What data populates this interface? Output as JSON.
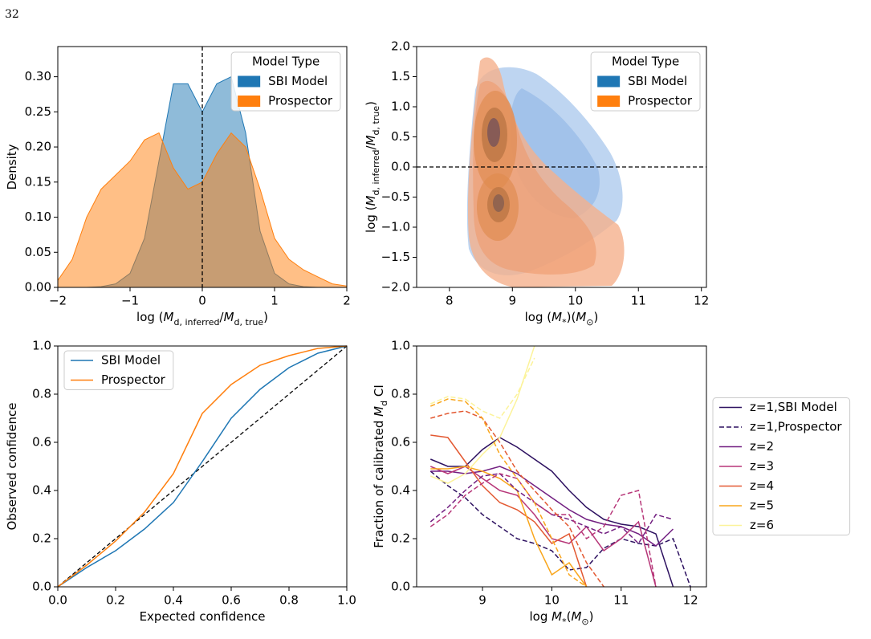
{
  "page_number": "32",
  "chart_data": [
    {
      "type": "area",
      "x": [
        -2,
        -1.8,
        -1.6,
        -1.4,
        -1.2,
        -1.0,
        -0.8,
        -0.6,
        -0.4,
        -0.2,
        0,
        0.2,
        0.4,
        0.6,
        0.8,
        1.0,
        1.2,
        1.4,
        1.6,
        1.8,
        2
      ],
      "series": [
        {
          "name": "SBI Model",
          "color": "#1f77b4",
          "values": [
            0,
            0,
            0,
            0.001,
            0.005,
            0.02,
            0.07,
            0.18,
            0.29,
            0.29,
            0.25,
            0.29,
            0.3,
            0.22,
            0.08,
            0.02,
            0.005,
            0.001,
            0,
            0,
            0
          ]
        },
        {
          "name": "Prospector",
          "color": "#ff7f0e",
          "values": [
            0.01,
            0.04,
            0.1,
            0.14,
            0.16,
            0.18,
            0.21,
            0.22,
            0.17,
            0.14,
            0.15,
            0.19,
            0.22,
            0.2,
            0.14,
            0.07,
            0.04,
            0.025,
            0.015,
            0.005,
            0.002
          ]
        }
      ],
      "xlim": [
        -2,
        2
      ],
      "ylim": [
        0,
        0.343
      ],
      "xticks": [
        {
          "value": -2,
          "label": "−2"
        },
        {
          "value": -1,
          "label": "−1"
        },
        0,
        1,
        2
      ],
      "yticks": [
        {
          "value": 0,
          "label": "0.00"
        },
        {
          "value": 0.05,
          "label": "0.05"
        },
        {
          "value": 0.1,
          "label": "0.10"
        },
        {
          "value": 0.15,
          "label": "0.15"
        },
        {
          "value": 0.2,
          "label": "0.20"
        },
        {
          "value": 0.25,
          "label": "0.25"
        },
        {
          "value": 0.3,
          "label": "0.30"
        }
      ],
      "xlabel": [
        {
          "text": "log ("
        },
        {
          "text": "M",
          "italic": true
        },
        {
          "text": "d, inferred",
          "sub": true
        },
        {
          "text": "/"
        },
        {
          "text": "M",
          "italic": true
        },
        {
          "text": "d, true",
          "sub": true
        },
        {
          "text": ")"
        }
      ],
      "ylabel": [
        {
          "text": "Density"
        }
      ],
      "vline": 0,
      "legend": {
        "title": "Model Type",
        "loc": "upper right",
        "style": "patch"
      }
    },
    {
      "type": "kde2d",
      "series": [
        {
          "name": "SBI Model",
          "color": "#1f77b4"
        },
        {
          "name": "Prospector",
          "color": "#ff7f0e"
        }
      ],
      "xlim": [
        7.48,
        12.08
      ],
      "ylim": [
        -2,
        2
      ],
      "xticks": [
        8,
        9,
        10,
        11,
        12
      ],
      "yticks": [
        {
          "value": 2,
          "label": "2.0"
        },
        {
          "value": 1.5,
          "label": "1.5"
        },
        {
          "value": 1,
          "label": "1.0"
        },
        {
          "value": 0.5,
          "label": "0.5"
        },
        {
          "value": 0,
          "label": "0.0"
        },
        {
          "value": -0.5,
          "label": "−0.5"
        },
        {
          "value": -1,
          "label": "−1.0"
        },
        {
          "value": -1.5,
          "label": "−1.5"
        },
        {
          "value": -2,
          "label": "−2.0"
        }
      ],
      "xlabel": [
        {
          "text": "log ("
        },
        {
          "text": "M",
          "italic": true
        },
        {
          "text": "*",
          "sub": true
        },
        {
          "text": ")("
        },
        {
          "text": "M",
          "italic": true
        },
        {
          "text": "⊙",
          "sub": true
        },
        {
          "text": ")"
        }
      ],
      "ylabel": [
        {
          "text": "log ("
        },
        {
          "text": "M",
          "italic": true
        },
        {
          "text": "d, inferred",
          "sub": true
        },
        {
          "text": "/"
        },
        {
          "text": "M",
          "italic": true
        },
        {
          "text": "d, true",
          "sub": true
        },
        {
          "text": ")"
        }
      ],
      "hline": 0,
      "legend": {
        "title": "Model Type",
        "loc": "upper right",
        "style": "patch"
      }
    },
    {
      "type": "line",
      "x": [
        0,
        0.1,
        0.2,
        0.3,
        0.4,
        0.5,
        0.6,
        0.7,
        0.8,
        0.9,
        1.0
      ],
      "series": [
        {
          "name": "SBI Model",
          "color": "#1f77b4",
          "values": [
            0,
            0.08,
            0.15,
            0.24,
            0.35,
            0.52,
            0.7,
            0.82,
            0.91,
            0.97,
            1.0
          ]
        },
        {
          "name": "Prospector",
          "color": "#ff7f0e",
          "values": [
            0,
            0.09,
            0.19,
            0.31,
            0.47,
            0.72,
            0.84,
            0.92,
            0.96,
            0.99,
            1.0
          ]
        }
      ],
      "xlim": [
        0,
        1
      ],
      "ylim": [
        0,
        1
      ],
      "xticks": [
        {
          "value": 0,
          "label": "0.0"
        },
        {
          "value": 0.2,
          "label": "0.2"
        },
        {
          "value": 0.4,
          "label": "0.4"
        },
        {
          "value": 0.6,
          "label": "0.6"
        },
        {
          "value": 0.8,
          "label": "0.8"
        },
        {
          "value": 1,
          "label": "1.0"
        }
      ],
      "yticks": [
        {
          "value": 0,
          "label": "0.0"
        },
        {
          "value": 0.2,
          "label": "0.2"
        },
        {
          "value": 0.4,
          "label": "0.4"
        },
        {
          "value": 0.6,
          "label": "0.6"
        },
        {
          "value": 0.8,
          "label": "0.8"
        },
        {
          "value": 1,
          "label": "1.0"
        }
      ],
      "xlabel": [
        {
          "text": "Expected confidence"
        }
      ],
      "ylabel": [
        {
          "text": "Observed confidence"
        }
      ],
      "diagonal": true,
      "legend": {
        "loc": "upper left",
        "style": "line"
      }
    },
    {
      "type": "line",
      "x": [
        8.25,
        8.5,
        8.75,
        9,
        9.25,
        9.5,
        9.75,
        10,
        10.25,
        10.5,
        10.75,
        11,
        11.25,
        11.5,
        11.75,
        12
      ],
      "series": [
        {
          "name": "z=1,SBI Model",
          "color": "#2d1160",
          "values": [
            0.53,
            0.5,
            0.5,
            0.57,
            0.62,
            0.58,
            0.53,
            0.48,
            0.4,
            0.33,
            0.28,
            0.26,
            0.25,
            0.22,
            0.0,
            null
          ]
        },
        {
          "name": "z=1,Prospector",
          "color": "#2d1160",
          "dashed": true,
          "values": [
            0.48,
            0.42,
            0.37,
            0.3,
            0.25,
            0.2,
            0.18,
            0.15,
            0.07,
            0.08,
            0.16,
            0.2,
            0.18,
            0.17,
            0.2,
            0.0
          ]
        },
        {
          "name": "z=2",
          "color": "#721f81",
          "values": [
            0.48,
            0.48,
            0.47,
            0.48,
            0.5,
            0.47,
            0.42,
            0.37,
            0.32,
            0.28,
            0.26,
            0.25,
            0.22,
            0.17,
            0.24,
            null
          ]
        },
        {
          "name": "z=3",
          "color": "#b73779",
          "values": [
            0.5,
            0.47,
            0.5,
            0.45,
            0.4,
            0.38,
            0.3,
            0.2,
            0.18,
            0.25,
            0.15,
            0.2,
            0.27,
            0.0,
            null,
            null
          ]
        },
        {
          "name": "z=4",
          "color": "#e35932",
          "values": [
            0.63,
            0.62,
            0.52,
            0.42,
            0.35,
            0.32,
            0.27,
            0.18,
            0.22,
            0.0,
            null,
            null,
            null,
            null,
            null,
            null
          ]
        },
        {
          "name": "z=5",
          "color": "#f9a61c",
          "values": [
            0.49,
            0.49,
            0.5,
            0.48,
            0.45,
            0.4,
            0.2,
            0.05,
            0.1,
            0.0,
            null,
            null,
            null,
            null,
            null,
            null
          ]
        },
        {
          "name": "z=6",
          "color": "#fcf39a",
          "values": [
            0.46,
            0.43,
            0.47,
            0.55,
            0.62,
            0.78,
            1.0,
            null,
            null,
            null,
            null,
            null,
            null,
            null,
            null,
            null
          ]
        },
        {
          "color": "#721f81",
          "dashed": true,
          "values": [
            0.27,
            0.33,
            0.4,
            0.46,
            0.47,
            0.4,
            0.35,
            0.3,
            0.28,
            0.25,
            0.22,
            0.25,
            0.18,
            0.3,
            0.28,
            null
          ]
        },
        {
          "color": "#b73779",
          "dashed": true,
          "values": [
            0.25,
            0.3,
            0.38,
            0.43,
            0.47,
            0.45,
            0.35,
            0.3,
            0.3,
            0.2,
            0.25,
            0.38,
            0.4,
            0.0,
            null,
            null
          ]
        },
        {
          "color": "#e35932",
          "dashed": true,
          "values": [
            0.7,
            0.72,
            0.73,
            0.7,
            0.6,
            0.48,
            0.4,
            0.32,
            0.25,
            0.1,
            0.0,
            null,
            null,
            null,
            null,
            null
          ]
        },
        {
          "color": "#f9a61c",
          "dashed": true,
          "values": [
            0.75,
            0.78,
            0.77,
            0.7,
            0.55,
            0.45,
            0.35,
            0.2,
            0.05,
            0.0,
            null,
            null,
            null,
            null,
            null,
            null
          ]
        },
        {
          "color": "#fcf39a",
          "dashed": true,
          "values": [
            0.76,
            0.79,
            0.78,
            0.73,
            0.7,
            0.8,
            0.95,
            null,
            null,
            null,
            null,
            null,
            null,
            null,
            null,
            null
          ]
        }
      ],
      "xlim": [
        8.05,
        12.23
      ],
      "ylim": [
        0,
        1
      ],
      "xticks": [
        9,
        10,
        11,
        12
      ],
      "yticks": [
        {
          "value": 0,
          "label": "0.0"
        },
        {
          "value": 0.2,
          "label": "0.2"
        },
        {
          "value": 0.4,
          "label": "0.4"
        },
        {
          "value": 0.6,
          "label": "0.6"
        },
        {
          "value": 0.8,
          "label": "0.8"
        },
        {
          "value": 1,
          "label": "1.0"
        }
      ],
      "xlabel": [
        {
          "text": "log "
        },
        {
          "text": "M",
          "italic": true
        },
        {
          "text": "*",
          "sub": true
        },
        {
          "text": "("
        },
        {
          "text": "M",
          "italic": true
        },
        {
          "text": "⊙",
          "sub": true
        },
        {
          "text": ")"
        }
      ],
      "ylabel": [
        {
          "text": "Fraction of calibrated "
        },
        {
          "text": "M",
          "italic": true
        },
        {
          "text": "d",
          "sub": true
        },
        {
          "text": " CI"
        }
      ],
      "legend": {
        "loc": "center right outside",
        "style": "line"
      }
    }
  ]
}
